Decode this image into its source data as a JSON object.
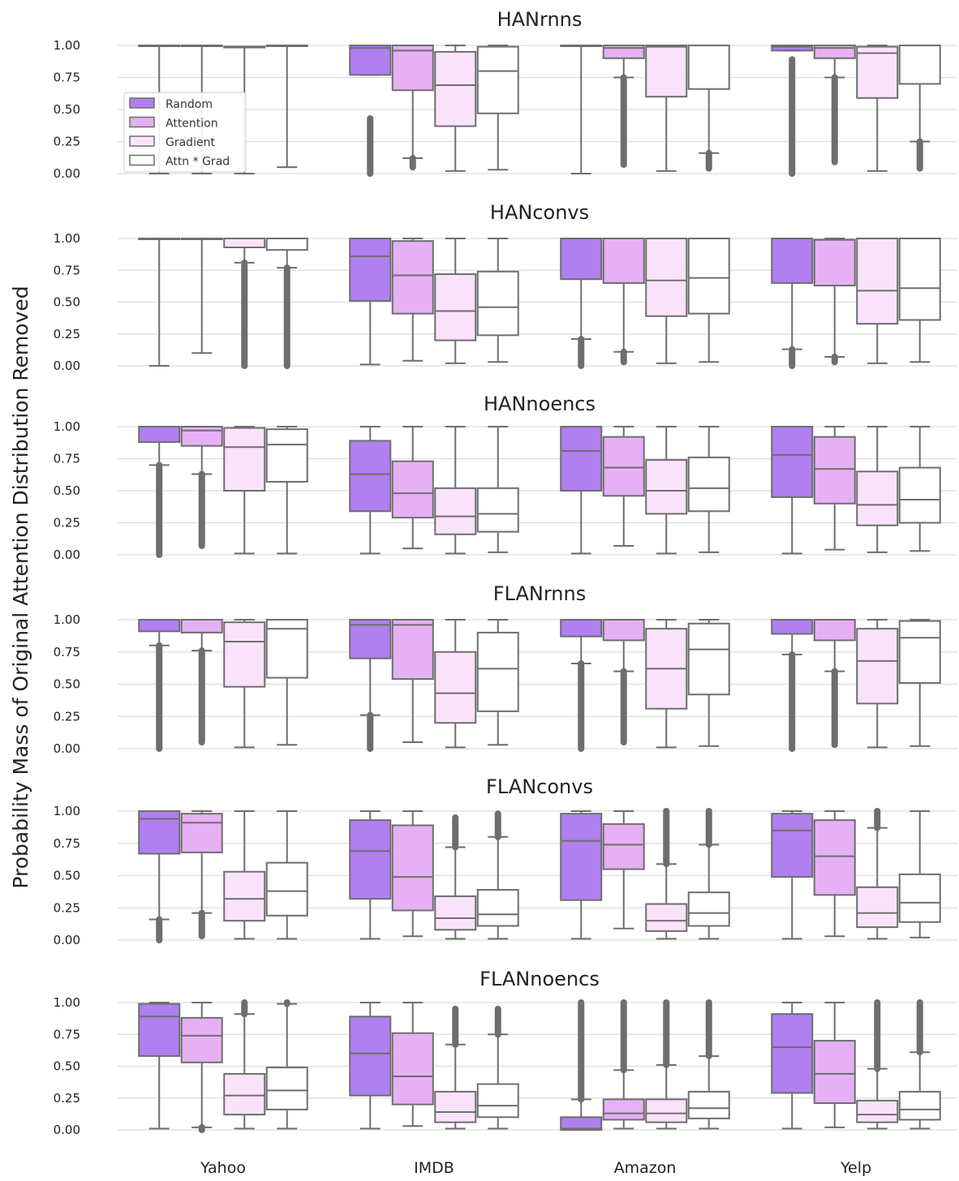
{
  "chart_data": {
    "type": "box",
    "ylabel": "Probability Mass of Original Attention Distribution Removed",
    "categories": [
      "Yahoo",
      "IMDB",
      "Amazon",
      "Yelp"
    ],
    "series_names": [
      "Random",
      "Attention",
      "Gradient",
      "Attn * Grad"
    ],
    "series_colors": [
      "#b07ff0",
      "#e6b0f5",
      "#fae3fa",
      "#ffffff"
    ],
    "ylim": [
      0,
      1
    ],
    "yticks": [
      "0.00",
      "0.25",
      "0.50",
      "0.75",
      "1.00"
    ],
    "legend_position": "upper-left (first panel)",
    "grid": true,
    "panels": [
      {
        "title": "HANrnns",
        "boxes": [
          [
            [
              0.0,
              1.0,
              1.0,
              1.0,
              1.0
            ],
            [
              0.0,
              1.0,
              1.0,
              1.0,
              1.0
            ],
            [
              0.0,
              0.99,
              0.99,
              0.99,
              0.99
            ],
            [
              0.05,
              1.0,
              1.0,
              1.0,
              1.0
            ]
          ],
          [
            [
              0.77,
              0.77,
              0.98,
              1.0,
              1.0,
              0.0,
              0.43
            ],
            [
              0.12,
              0.65,
              0.96,
              1.0,
              1.0,
              0.05,
              0.12
            ],
            [
              0.02,
              0.37,
              0.69,
              0.95,
              1.0
            ],
            [
              0.03,
              0.47,
              0.8,
              0.99,
              1.0
            ]
          ],
          [
            [
              0.0,
              1.0,
              1.0,
              1.0,
              1.0
            ],
            [
              0.75,
              0.9,
              0.98,
              1.0,
              1.0,
              0.07,
              0.75
            ],
            [
              0.02,
              0.6,
              0.99,
              1.0,
              1.0
            ],
            [
              0.16,
              0.66,
              1.0,
              1.0,
              1.0,
              0.04,
              0.16
            ]
          ],
          [
            [
              0.96,
              0.96,
              0.99,
              1.0,
              1.0,
              0.0,
              0.89
            ],
            [
              0.75,
              0.9,
              0.98,
              1.0,
              1.0,
              0.09,
              0.75
            ],
            [
              0.02,
              0.59,
              0.94,
              0.99,
              1.0
            ],
            [
              0.25,
              0.7,
              1.0,
              1.0,
              1.0,
              0.04,
              0.25
            ]
          ]
        ]
      },
      {
        "title": "HANconvs",
        "boxes": [
          [
            [
              0.0,
              1.0,
              1.0,
              1.0,
              1.0
            ],
            [
              0.1,
              1.0,
              1.0,
              1.0,
              1.0
            ],
            [
              0.81,
              0.93,
              1.0,
              1.0,
              1.0,
              0.0,
              0.81
            ],
            [
              0.77,
              0.91,
              1.0,
              1.0,
              1.0,
              0.0,
              0.77
            ]
          ],
          [
            [
              0.01,
              0.51,
              0.86,
              1.0,
              1.0
            ],
            [
              0.04,
              0.41,
              0.71,
              0.98,
              1.0
            ],
            [
              0.02,
              0.2,
              0.43,
              0.72,
              1.0
            ],
            [
              0.03,
              0.24,
              0.46,
              0.74,
              1.0
            ]
          ],
          [
            [
              0.21,
              0.68,
              1.0,
              1.0,
              1.0,
              0.0,
              0.21
            ],
            [
              0.11,
              0.65,
              1.0,
              1.0,
              1.0,
              0.03,
              0.11
            ],
            [
              0.02,
              0.39,
              0.67,
              1.0,
              1.0
            ],
            [
              0.03,
              0.41,
              0.69,
              1.0,
              1.0
            ]
          ],
          [
            [
              0.13,
              0.65,
              1.0,
              1.0,
              1.0,
              0.0,
              0.13
            ],
            [
              0.07,
              0.63,
              0.99,
              0.99,
              1.0,
              0.03,
              0.07
            ],
            [
              0.02,
              0.33,
              0.59,
              1.0,
              1.0
            ],
            [
              0.03,
              0.36,
              0.61,
              1.0,
              1.0
            ]
          ]
        ]
      },
      {
        "title": "HANnoencs",
        "boxes": [
          [
            [
              0.7,
              0.88,
              1.0,
              1.0,
              1.0,
              0.0,
              0.7
            ],
            [
              0.63,
              0.85,
              0.97,
              1.0,
              1.0,
              0.07,
              0.63
            ],
            [
              0.01,
              0.5,
              0.84,
              0.99,
              1.0
            ],
            [
              0.01,
              0.57,
              0.86,
              0.98,
              1.0
            ]
          ],
          [
            [
              0.01,
              0.34,
              0.63,
              0.89,
              1.0
            ],
            [
              0.05,
              0.29,
              0.48,
              0.73,
              1.0
            ],
            [
              0.01,
              0.16,
              0.3,
              0.52,
              1.0
            ],
            [
              0.02,
              0.18,
              0.32,
              0.52,
              1.0
            ]
          ],
          [
            [
              0.01,
              0.5,
              0.81,
              1.0,
              1.0
            ],
            [
              0.07,
              0.46,
              0.68,
              0.92,
              1.0
            ],
            [
              0.01,
              0.32,
              0.5,
              0.74,
              1.0
            ],
            [
              0.02,
              0.34,
              0.52,
              0.76,
              1.0
            ]
          ],
          [
            [
              0.01,
              0.45,
              0.78,
              1.0,
              1.0
            ],
            [
              0.04,
              0.4,
              0.67,
              0.92,
              1.0
            ],
            [
              0.02,
              0.23,
              0.39,
              0.65,
              1.0
            ],
            [
              0.03,
              0.25,
              0.43,
              0.68,
              1.0
            ]
          ]
        ]
      },
      {
        "title": "FLANrnns",
        "boxes": [
          [
            [
              0.8,
              0.91,
              1.0,
              1.0,
              1.0,
              0.0,
              0.8
            ],
            [
              0.76,
              0.9,
              1.0,
              1.0,
              1.0,
              0.05,
              0.76
            ],
            [
              0.01,
              0.48,
              0.83,
              0.98,
              1.0
            ],
            [
              0.03,
              0.55,
              0.93,
              1.0,
              1.0
            ]
          ],
          [
            [
              0.26,
              0.7,
              0.96,
              1.0,
              1.0,
              0.0,
              0.26
            ],
            [
              0.05,
              0.54,
              0.96,
              1.0,
              1.0
            ],
            [
              0.01,
              0.2,
              0.43,
              0.75,
              1.0
            ],
            [
              0.03,
              0.29,
              0.62,
              0.9,
              1.0
            ]
          ],
          [
            [
              0.66,
              0.87,
              1.0,
              1.0,
              1.0,
              0.0,
              0.66
            ],
            [
              0.6,
              0.84,
              1.0,
              1.0,
              1.0,
              0.05,
              0.6
            ],
            [
              0.01,
              0.31,
              0.62,
              0.93,
              1.0
            ],
            [
              0.02,
              0.42,
              0.77,
              0.97,
              1.0
            ]
          ],
          [
            [
              0.73,
              0.89,
              1.0,
              1.0,
              1.0,
              0.0,
              0.73
            ],
            [
              0.6,
              0.84,
              1.0,
              1.0,
              1.0,
              0.03,
              0.6
            ],
            [
              0.01,
              0.35,
              0.68,
              0.93,
              1.0
            ],
            [
              0.02,
              0.51,
              0.86,
              0.99,
              1.0
            ]
          ]
        ]
      },
      {
        "title": "FLANconvs",
        "boxes": [
          [
            [
              0.16,
              0.67,
              0.94,
              1.0,
              1.0,
              0.0,
              0.16
            ],
            [
              0.21,
              0.68,
              0.91,
              0.98,
              1.0,
              0.03,
              0.21
            ],
            [
              0.01,
              0.15,
              0.32,
              0.53,
              1.0
            ],
            [
              0.01,
              0.19,
              0.38,
              0.6,
              1.0
            ]
          ],
          [
            [
              0.01,
              0.32,
              0.69,
              0.93,
              1.0
            ],
            [
              0.03,
              0.23,
              0.49,
              0.89,
              1.0
            ],
            [
              0.01,
              0.08,
              0.17,
              0.34,
              0.72,
              0.72,
              0.95
            ],
            [
              0.01,
              0.11,
              0.2,
              0.39,
              0.8,
              0.8,
              0.98
            ]
          ],
          [
            [
              0.01,
              0.31,
              0.77,
              0.98,
              1.0
            ],
            [
              0.09,
              0.55,
              0.74,
              0.9,
              1.0
            ],
            [
              0.01,
              0.07,
              0.15,
              0.28,
              0.59,
              0.59,
              1.0
            ],
            [
              0.01,
              0.11,
              0.21,
              0.37,
              0.74,
              0.74,
              1.0
            ]
          ],
          [
            [
              0.01,
              0.49,
              0.85,
              0.98,
              1.0
            ],
            [
              0.03,
              0.35,
              0.65,
              0.93,
              1.0
            ],
            [
              0.01,
              0.1,
              0.21,
              0.41,
              0.87,
              0.87,
              1.0
            ],
            [
              0.02,
              0.14,
              0.29,
              0.51,
              1.0
            ]
          ]
        ]
      },
      {
        "title": "FLANnoencs",
        "boxes": [
          [
            [
              0.01,
              0.58,
              0.89,
              0.99,
              1.0
            ],
            [
              0.02,
              0.53,
              0.74,
              0.88,
              1.0,
              0.0,
              0.02
            ],
            [
              0.01,
              0.12,
              0.27,
              0.44,
              0.91,
              0.91,
              1.0
            ],
            [
              0.01,
              0.16,
              0.31,
              0.49,
              0.99,
              0.99,
              1.0
            ]
          ],
          [
            [
              0.01,
              0.27,
              0.6,
              0.89,
              1.0
            ],
            [
              0.03,
              0.2,
              0.42,
              0.76,
              1.0
            ],
            [
              0.01,
              0.06,
              0.14,
              0.3,
              0.67,
              0.67,
              0.95
            ],
            [
              0.01,
              0.1,
              0.19,
              0.36,
              0.75,
              0.75,
              0.95
            ]
          ],
          [
            [
              0.0,
              0.0,
              0.01,
              0.1,
              0.24,
              0.24,
              1.0
            ],
            [
              0.01,
              0.08,
              0.13,
              0.24,
              0.47,
              0.47,
              1.0
            ],
            [
              0.01,
              0.06,
              0.13,
              0.24,
              0.51,
              0.51,
              1.0
            ],
            [
              0.01,
              0.09,
              0.17,
              0.3,
              0.58,
              0.58,
              1.0
            ]
          ],
          [
            [
              0.01,
              0.29,
              0.65,
              0.91,
              1.0
            ],
            [
              0.02,
              0.21,
              0.44,
              0.7,
              1.0
            ],
            [
              0.01,
              0.06,
              0.12,
              0.23,
              0.48,
              0.48,
              1.0
            ],
            [
              0.01,
              0.08,
              0.16,
              0.3,
              0.61,
              0.61,
              1.0
            ]
          ]
        ]
      }
    ]
  }
}
